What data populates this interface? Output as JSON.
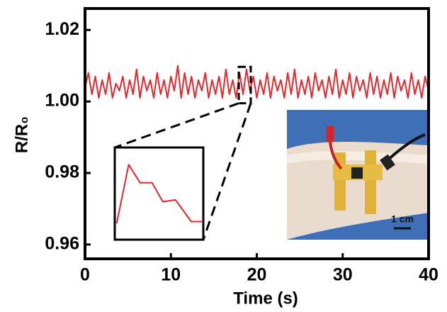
{
  "chart_data": [
    {
      "type": "line",
      "xlabel": "Time (s)",
      "ylabel": "R/R₀",
      "color": "#e8252b",
      "x": [
        0,
        0.4,
        0.8,
        1.2,
        1.6,
        2,
        2.4,
        2.8,
        3.2,
        3.6,
        4,
        4.4,
        4.8,
        5.2,
        5.6,
        6,
        6.4,
        6.8,
        7.2,
        7.6,
        8,
        8.4,
        8.8,
        9.2,
        9.6,
        10,
        10.4,
        10.8,
        11.2,
        11.6,
        12,
        12.4,
        12.8,
        13.2,
        13.6,
        14,
        14.4,
        14.8,
        15.2,
        15.6,
        16,
        16.4,
        16.8,
        17.2,
        17.6,
        18,
        18.4,
        18.8,
        19.2,
        19.6,
        20,
        20.4,
        20.8,
        21.2,
        21.6,
        22,
        22.4,
        22.8,
        23.2,
        23.6,
        24,
        24.4,
        24.8,
        25.2,
        25.6,
        26,
        26.4,
        26.8,
        27.2,
        27.6,
        28,
        28.4,
        28.8,
        29.2,
        29.6,
        30,
        30.4,
        30.8,
        31.2,
        31.6,
        32,
        32.4,
        32.8,
        33.2,
        33.6,
        34,
        34.4,
        34.8,
        35.2,
        35.6,
        36,
        36.4,
        36.8,
        37.2,
        37.6,
        38,
        38.4,
        38.8,
        39.2,
        39.6,
        40
      ],
      "values": [
        1.004,
        1.008,
        1.002,
        1.007,
        1.001,
        1.006,
        1.002,
        1.008,
        1.001,
        1.005,
        1.003,
        1.007,
        1.001,
        1.006,
        1.002,
        1.009,
        1.001,
        1.007,
        1.003,
        1.006,
        1.001,
        1.008,
        1.002,
        1.006,
        1.001,
        1.007,
        1.003,
        1.01,
        1.001,
        1.008,
        1.002,
        1.007,
        1.001,
        1.006,
        1.003,
        1.008,
        1.001,
        1.006,
        1.002,
        1.007,
        1.001,
        1.009,
        1.002,
        1.006,
        1.001,
        1.008,
        1.002,
        1.009,
        1.003,
        1.007,
        1.001,
        1.006,
        1.002,
        1.008,
        1.001,
        1.007,
        1.003,
        1.006,
        1.001,
        1.008,
        1.002,
        1.009,
        1.001,
        1.006,
        1.002,
        1.007,
        1.001,
        1.008,
        1.003,
        1.006,
        1.001,
        1.007,
        1.002,
        1.009,
        1.001,
        1.006,
        1.002,
        1.008,
        1.001,
        1.007,
        1.003,
        1.006,
        1.001,
        1.008,
        1.002,
        1.007,
        1.001,
        1.006,
        1.002,
        1.008,
        1.001,
        1.007,
        1.003,
        1.006,
        1.001,
        1.008,
        1.002,
        1.006,
        1.001,
        1.007,
        1.003
      ],
      "xlim": [
        0,
        40
      ],
      "xticks": [
        0,
        10,
        20,
        30,
        40
      ],
      "ylim": [
        0.956,
        1.026
      ],
      "yticks": [
        0.96,
        0.98,
        {
          "value": 1,
          "label": "1.00"
        },
        1.02
      ]
    },
    {
      "type": "line",
      "color": "#e8252b",
      "x": [
        17.93,
        18.12,
        18.3,
        18.49,
        18.66,
        18.86,
        19.11,
        19.28
      ],
      "values": [
        1.0013,
        1.0078,
        1.0058,
        1.0058,
        1.0037,
        1.0039,
        1.0015,
        1.0015
      ],
      "xlim": [
        17.9,
        19.3
      ],
      "ylim": [
        0.9995,
        1.0097
      ]
    }
  ],
  "photo": {
    "scale_label": "1 cm"
  }
}
